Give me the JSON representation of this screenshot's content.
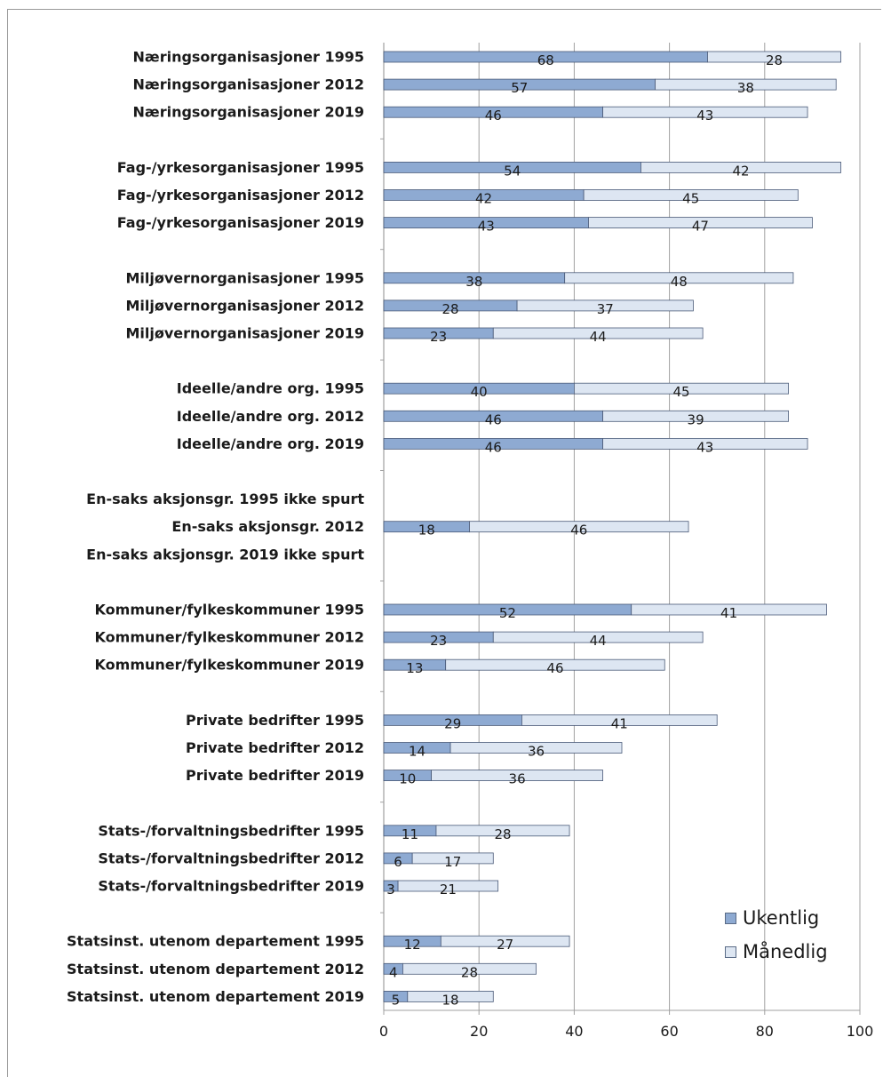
{
  "colors": {
    "ukentlig": "#8eaad2",
    "manedlig": "#dde6f2",
    "grid": "#a0a0a0",
    "bar_border": "#4a5a78"
  },
  "chart_data": {
    "type": "bar",
    "orientation": "horizontal",
    "stacked": true,
    "title": "",
    "xlabel": "",
    "ylabel": "",
    "xlim": [
      0,
      100
    ],
    "xticks": [
      0,
      20,
      40,
      60,
      80,
      100
    ],
    "grid": "vertical",
    "legend_position": "bottom-right",
    "groups": [
      {
        "rows": [
          {
            "label": "Næringsorganisasjoner 1995",
            "values": [
              68,
              28
            ]
          },
          {
            "label": "Næringsorganisasjoner 2012",
            "values": [
              57,
              38
            ]
          },
          {
            "label": "Næringsorganisasjoner 2019",
            "values": [
              46,
              43
            ]
          }
        ]
      },
      {
        "rows": [
          {
            "label": "Fag-/yrkesorganisasjoner 1995",
            "values": [
              54,
              42
            ]
          },
          {
            "label": "Fag-/yrkesorganisasjoner 2012",
            "values": [
              42,
              45
            ]
          },
          {
            "label": "Fag-/yrkesorganisasjoner 2019",
            "values": [
              43,
              47
            ]
          }
        ]
      },
      {
        "rows": [
          {
            "label": "Miljøvernorganisasjoner 1995",
            "values": [
              38,
              48
            ]
          },
          {
            "label": "Miljøvernorganisasjoner 2012",
            "values": [
              28,
              37
            ]
          },
          {
            "label": "Miljøvernorganisasjoner 2019",
            "values": [
              23,
              44
            ]
          }
        ]
      },
      {
        "rows": [
          {
            "label": "Ideelle/andre org. 1995",
            "values": [
              40,
              45
            ]
          },
          {
            "label": "Ideelle/andre org. 2012",
            "values": [
              46,
              39
            ]
          },
          {
            "label": "Ideelle/andre org. 2019",
            "values": [
              46,
              43
            ]
          }
        ]
      },
      {
        "rows": [
          {
            "label": "En-saks aksjonsgr. 1995 ikke spurt",
            "values": null
          },
          {
            "label": "En-saks aksjonsgr. 2012",
            "values": [
              18,
              46
            ]
          },
          {
            "label": "En-saks aksjonsgr. 2019 ikke spurt",
            "values": null
          }
        ]
      },
      {
        "rows": [
          {
            "label": "Kommuner/fylkeskommuner 1995",
            "values": [
              52,
              41
            ]
          },
          {
            "label": "Kommuner/fylkeskommuner 2012",
            "values": [
              23,
              44
            ]
          },
          {
            "label": "Kommuner/fylkeskommuner 2019",
            "values": [
              13,
              46
            ]
          }
        ]
      },
      {
        "rows": [
          {
            "label": "Private bedrifter 1995",
            "values": [
              29,
              41
            ]
          },
          {
            "label": "Private bedrifter 2012",
            "values": [
              14,
              36
            ]
          },
          {
            "label": "Private bedrifter 2019",
            "values": [
              10,
              36
            ]
          }
        ]
      },
      {
        "rows": [
          {
            "label": "Stats-/forvaltningsbedrifter 1995",
            "values": [
              11,
              28
            ]
          },
          {
            "label": "Stats-/forvaltningsbedrifter 2012",
            "values": [
              6,
              17
            ]
          },
          {
            "label": "Stats-/forvaltningsbedrifter 2019",
            "values": [
              3,
              21
            ]
          }
        ]
      },
      {
        "rows": [
          {
            "label": "Statsinst. utenom departement 1995",
            "values": [
              12,
              27
            ]
          },
          {
            "label": "Statsinst. utenom departement 2012",
            "values": [
              4,
              28
            ]
          },
          {
            "label": "Statsinst. utenom departement 2019",
            "values": [
              5,
              18
            ]
          }
        ]
      }
    ],
    "series": [
      {
        "name": "Ukentlig"
      },
      {
        "name": "Månedlig"
      }
    ]
  }
}
